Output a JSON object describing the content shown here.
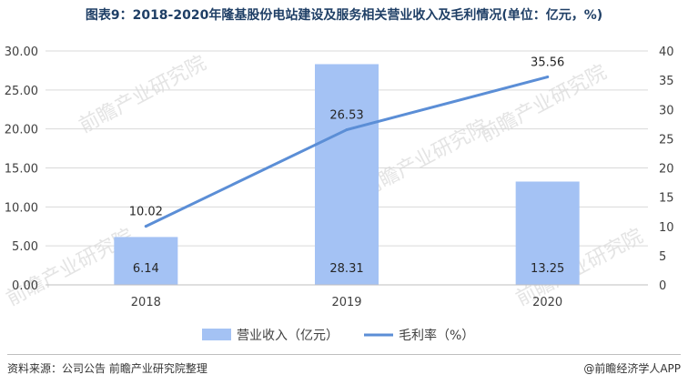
{
  "title": "图表9：2018-2020年隆基股份电站建设及服务相关营业收入及毛利情况(单位：亿元，%)",
  "source": "资料来源：公司公告 前瞻产业研究院整理",
  "brand": "@前瞻经济学人APP",
  "watermark": "前瞻产业研究院",
  "chart_data": {
    "type": "bar+line",
    "categories": [
      "2018",
      "2019",
      "2020"
    ],
    "series": [
      {
        "name": "营业收入（亿元）",
        "type": "bar",
        "axis": "left",
        "values": [
          6.14,
          28.31,
          13.25
        ],
        "color": "#a4c2f4",
        "labels": [
          "6.14",
          "28.31",
          "13.25"
        ]
      },
      {
        "name": "毛利率（%）",
        "type": "line",
        "axis": "right",
        "values": [
          10.02,
          26.53,
          35.56
        ],
        "color": "#5b8ed6",
        "labels": [
          "10.02",
          "26.53",
          "35.56"
        ]
      }
    ],
    "y_left": {
      "min": 0,
      "max": 30,
      "ticks": [
        "0.00",
        "5.00",
        "10.00",
        "15.00",
        "20.00",
        "25.00",
        "30.00"
      ]
    },
    "y_right": {
      "min": 0,
      "max": 40,
      "ticks": [
        "0",
        "5",
        "10",
        "15",
        "20",
        "25",
        "30",
        "35",
        "40"
      ]
    },
    "grid": true,
    "legend": "bottom"
  }
}
